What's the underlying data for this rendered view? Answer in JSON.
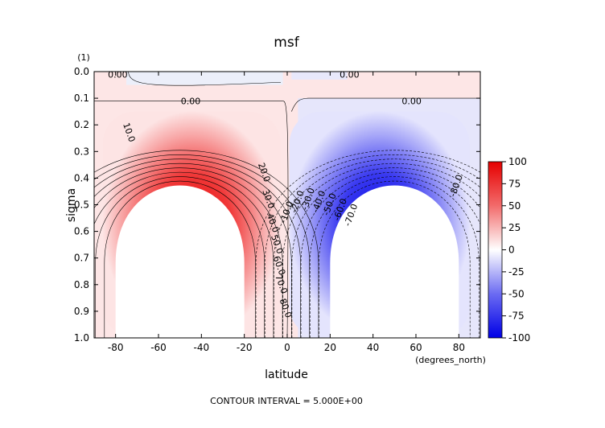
{
  "chart_data": {
    "type": "heatmap",
    "title": "msf",
    "xlabel": "latitude",
    "x_units": "(degrees_north)",
    "ylabel": "sigma",
    "y_units": "(1)",
    "xlim": [
      -90,
      90
    ],
    "ylim": [
      0.0,
      1.0
    ],
    "y_inverted": true,
    "x_ticks": [
      -80,
      -60,
      -40,
      -20,
      0,
      20,
      40,
      60,
      80
    ],
    "y_ticks": [
      "0.0",
      "0.1",
      "0.2",
      "0.3",
      "0.4",
      "0.5",
      "0.6",
      "0.7",
      "0.8",
      "0.9",
      "1.0"
    ],
    "colorbar": {
      "min": -100,
      "max": 100,
      "ticks": [
        100,
        75,
        50,
        25,
        0,
        -25,
        -50,
        -75,
        -100
      ],
      "colors": {
        "positive": "#e60000",
        "zero": "#ffffff",
        "negative": "#0000e6"
      }
    },
    "contour_interval": 5.0,
    "footer": "CONTOUR INTERVAL = 5.000E+00",
    "cells": {
      "south_hadley": {
        "center_lat": -50,
        "center_sigma": 0.5,
        "max": 90,
        "sign": "positive"
      },
      "north_hadley": {
        "center_lat": 50,
        "center_sigma": 0.5,
        "max": -90,
        "sign": "negative"
      }
    },
    "contour_labels": [
      "0.00",
      "0.00",
      "0.00",
      "0.00",
      "10.0",
      "20.0",
      "30.0",
      "40.0",
      "50.0",
      "60.0",
      "70.0",
      "80.0",
      "-10.0",
      "-20.0",
      "-30.0",
      "-40.0",
      "-50.0",
      "-60.0",
      "-70.0",
      "-80.0"
    ],
    "grid": false
  }
}
